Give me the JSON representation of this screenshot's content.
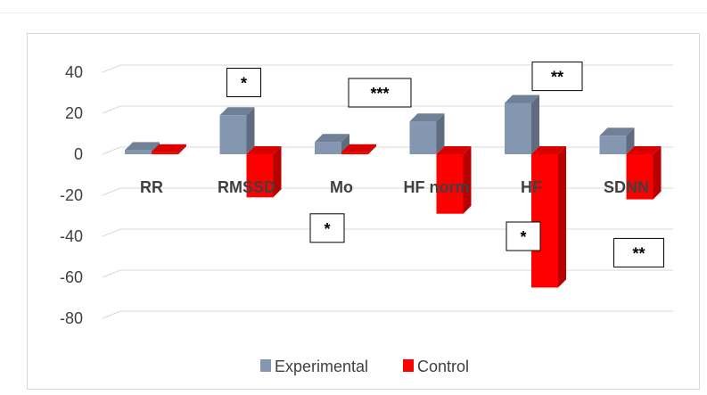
{
  "chart_data": {
    "type": "bar",
    "title": "",
    "xlabel": "",
    "ylabel": "",
    "ylim": [
      -80,
      40
    ],
    "yticks": [
      40,
      20,
      0,
      -20,
      -40,
      -60,
      -80
    ],
    "grid": true,
    "legend_position": "bottom",
    "categories": [
      "RR",
      "RMSSD",
      "Mo",
      "HF norm",
      "HF",
      "SDNN"
    ],
    "series": [
      {
        "name": "Experimental",
        "color": "#8496b0",
        "values": [
          2,
          19,
          6,
          16,
          25,
          9
        ]
      },
      {
        "name": "Control",
        "color": "#ff0000",
        "values": [
          1,
          -21,
          1,
          -29,
          -65,
          -22
        ]
      }
    ],
    "annotations": [
      {
        "text": "*",
        "category": "RMSSD",
        "value": 35
      },
      {
        "text": "***",
        "category": "Mo",
        "value": 30
      },
      {
        "text": "*",
        "category": "Mo",
        "value": -36
      },
      {
        "text": "**",
        "category": "HF",
        "value": 38
      },
      {
        "text": "*",
        "category": "HF",
        "value": -40
      },
      {
        "text": "**",
        "category": "SDNN",
        "value": -48
      }
    ]
  }
}
